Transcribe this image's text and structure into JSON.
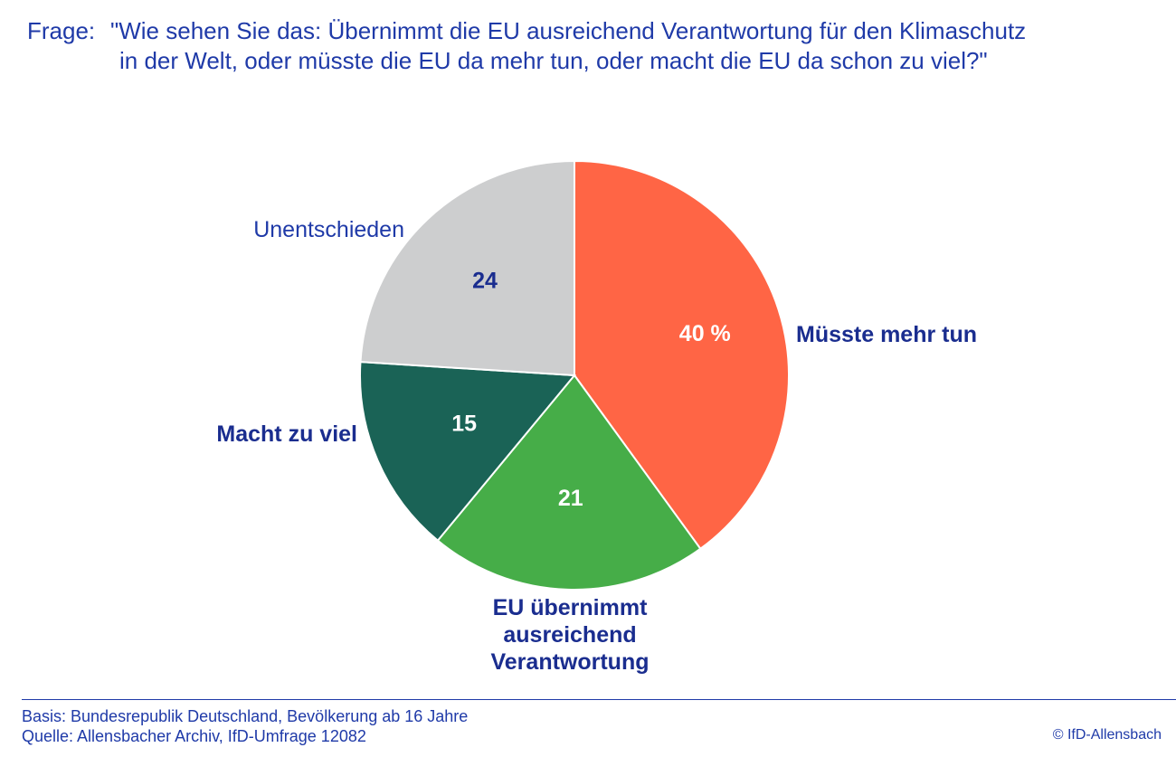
{
  "question": {
    "prefix": "Frage:",
    "line1": "\"Wie sehen Sie das: Übernimmt die EU ausreichend Verantwortung für den Klimaschutz",
    "line2": "in der Welt, oder müsste die EU da mehr tun, oder macht die EU da schon zu viel?\""
  },
  "chart_data": {
    "type": "pie",
    "title": "",
    "unit": "%",
    "slices": [
      {
        "label": "Müsste mehr tun",
        "value": 40,
        "display": "40 %",
        "color": "#ff6545",
        "value_text_color": "#ffffff",
        "label_bold": true
      },
      {
        "label": "EU übernimmt ausreichend Verantwortung",
        "label_lines": [
          "EU übernimmt",
          "ausreichend",
          "Verantwortung"
        ],
        "value": 21,
        "display": "21",
        "color": "#46ad48",
        "value_text_color": "#ffffff",
        "label_bold": true
      },
      {
        "label": "Macht zu viel",
        "value": 15,
        "display": "15",
        "color": "#1a6356",
        "value_text_color": "#ffffff",
        "label_bold": true
      },
      {
        "label": "Unentschieden",
        "value": 24,
        "display": "24",
        "color": "#cdcecf",
        "value_text_color": "#1a2d8f",
        "label_bold": false
      }
    ]
  },
  "footer": {
    "basis": "Basis: Bundesrepublik Deutschland, Bevölkerung ab 16 Jahre",
    "source": "Quelle: Allensbacher Archiv, IfD-Umfrage 12082",
    "copyright": "© IfD-Allensbach"
  },
  "colors": {
    "text_blue": "#1f3aa8",
    "label_navy": "#1a2d8f"
  }
}
